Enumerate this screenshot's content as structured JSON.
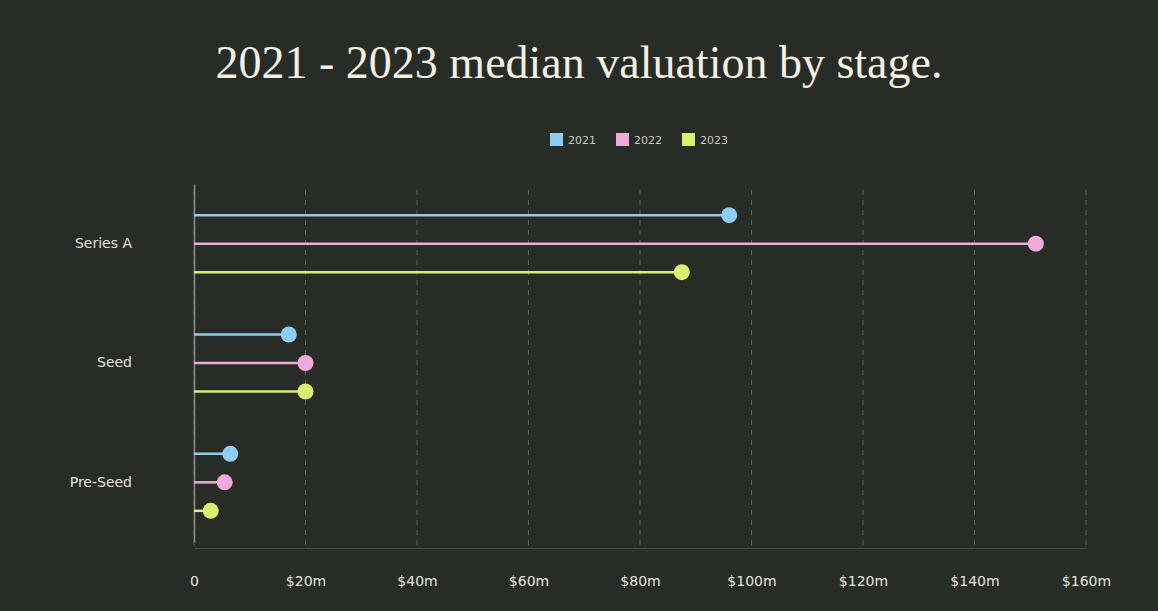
{
  "chart_data": {
    "type": "lollipop",
    "orientation": "horizontal",
    "title": "2021 - 2023 median valuation by stage.",
    "categories": [
      "Series A",
      "Seed",
      "Pre-Seed"
    ],
    "series": [
      {
        "name": "2021",
        "color": "#8ecdf0",
        "values": [
          96,
          17,
          6.5
        ]
      },
      {
        "name": "2022",
        "color": "#eeaadb",
        "values": [
          151,
          20,
          5.5
        ]
      },
      {
        "name": "2023",
        "color": "#d8ef6f",
        "values": [
          87.5,
          20,
          3
        ]
      }
    ],
    "xlim": [
      0,
      160
    ],
    "xticks": [
      0,
      {
        "value": 20,
        "label": "$20m"
      },
      {
        "value": 40,
        "label": "$40m"
      },
      {
        "value": 60,
        "label": "$60m"
      },
      {
        "value": 80,
        "label": "$80m"
      },
      {
        "value": 100,
        "label": "$100m"
      },
      {
        "value": 120,
        "label": "$120m"
      },
      {
        "value": 140,
        "label": "$140m"
      },
      {
        "value": 160,
        "label": "$160m"
      }
    ],
    "grid": true,
    "legend": "top",
    "marker": "circle"
  }
}
